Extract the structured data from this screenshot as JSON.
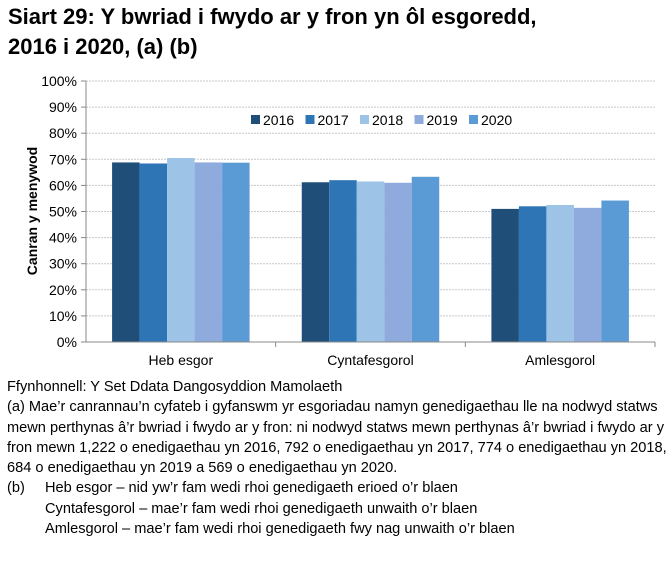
{
  "chart_data": {
    "type": "bar",
    "title": "Siart 29: Y bwriad i fwydo ar y fron yn ôl esgoredd, 2016 i 2020, (a) (b)",
    "title_lines": [
      "Siart 29: Y bwriad i fwydo ar y fron yn ôl esgoredd,",
      "2016 i 2020, (a) (b)"
    ],
    "xlabel": "",
    "ylabel": "Canran y menywod",
    "ylim": [
      0,
      100
    ],
    "yticks": [
      "0%",
      "10%",
      "20%",
      "30%",
      "40%",
      "50%",
      "60%",
      "70%",
      "80%",
      "90%",
      "100%"
    ],
    "grid": true,
    "legend_position": "top-center",
    "categories": [
      "Heb esgor",
      "Cyntafesgorol",
      "Amlesgorol"
    ],
    "series": [
      {
        "name": "2016",
        "color": "#1F4E79",
        "values": [
          68.8,
          61.2,
          51.0
        ]
      },
      {
        "name": "2017",
        "color": "#2E75B6",
        "values": [
          68.4,
          62.0,
          52.0
        ]
      },
      {
        "name": "2018",
        "color": "#9DC3E6",
        "values": [
          70.5,
          61.5,
          52.5
        ]
      },
      {
        "name": "2019",
        "color": "#8FAADC",
        "values": [
          68.8,
          61.0,
          51.4
        ]
      },
      {
        "name": "2020",
        "color": "#5B9BD5",
        "values": [
          68.7,
          63.3,
          54.2
        ]
      }
    ]
  },
  "notes": {
    "source": "Ffynhonnell: Y Set Ddata Dangosyddion Mamolaeth",
    "note_a": "(a) Mae’r canrannau’n cyfateb i gyfanswm yr esgoriadau namyn genedigaethau lle na nodwyd statws mewn perthynas â’r bwriad i fwydo ar y fron: ni nodwyd statws mewn perthynas â’r bwriad i fwydo ar y fron mewn 1,222 o enedigaethau yn 2016, 792 o enedigaethau yn 2017, 774 o enedigaethau yn 2018, 684 o enedigaethau yn 2019 a 569 o enedigaethau yn 2020.",
    "note_b_label": "(b)",
    "note_b_lines": [
      "Heb esgor – nid yw’r fam wedi rhoi genedigaeth erioed o’r blaen",
      "Cyntafesgorol – mae’r fam wedi rhoi genedigaeth unwaith o’r blaen",
      "Amlesgorol – mae’r fam wedi rhoi genedigaeth fwy nag unwaith o’r blaen"
    ]
  }
}
